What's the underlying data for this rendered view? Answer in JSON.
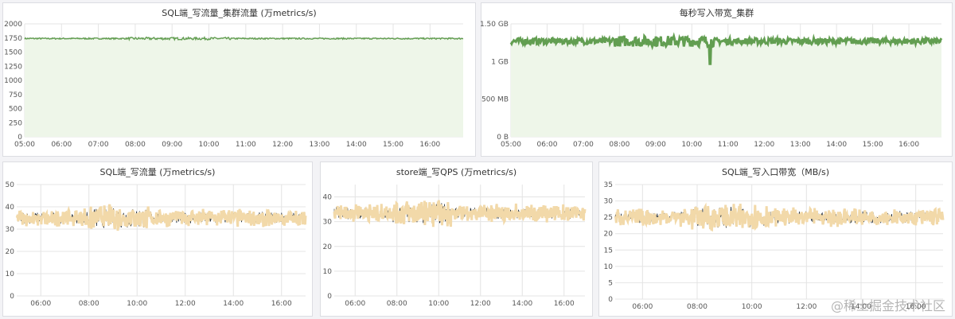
{
  "colors": {
    "green": "#629e51",
    "green_fill": "#eef6e9",
    "wheat": "#f2d9a9",
    "dark": "#1f2a38",
    "grid": "#e4e4e4"
  },
  "chart_data": [
    {
      "id": "p1",
      "type": "line",
      "title": "SQL端_写流量_集群流量 (万metrics/s)",
      "x_ticks": [
        "05:00",
        "06:00",
        "07:00",
        "08:00",
        "09:00",
        "10:00",
        "11:00",
        "12:00",
        "13:00",
        "14:00",
        "15:00",
        "16:00"
      ],
      "x_range": [
        5.0,
        16.9
      ],
      "y_ticks": [
        "0",
        "250",
        "500",
        "750",
        "1000",
        "1250",
        "1500",
        "1750",
        "2000"
      ],
      "y_range": [
        0,
        2000
      ],
      "series": [
        {
          "baseline": 1740,
          "noise": 12,
          "fill": true
        }
      ]
    },
    {
      "id": "p2",
      "type": "area",
      "title": "每秒写入带宽_集群",
      "x_ticks": [
        "05:00",
        "06:00",
        "07:00",
        "08:00",
        "09:00",
        "10:00",
        "11:00",
        "12:00",
        "13:00",
        "14:00",
        "15:00",
        "16:00"
      ],
      "x_range": [
        5.0,
        16.9
      ],
      "y_ticks": [
        "0 B",
        "500 MB",
        "1 GB",
        "1.50 GB"
      ],
      "y_range": [
        0,
        1.5
      ],
      "series": [
        {
          "baseline": 1.27,
          "noise": 0.04,
          "fill": true
        }
      ]
    },
    {
      "id": "p3",
      "type": "line",
      "title": "SQL端_写流量 (万metrics/s)",
      "x_ticks": [
        "06:00",
        "08:00",
        "10:00",
        "12:00",
        "14:00",
        "16:00"
      ],
      "x_range": [
        5.0,
        17.0
      ],
      "y_ticks": [
        "0",
        "10",
        "20",
        "30",
        "40",
        "50"
      ],
      "y_range": [
        0,
        50
      ],
      "series": [
        {
          "baseline": 35,
          "noise": 2.5
        }
      ]
    },
    {
      "id": "p4",
      "type": "line",
      "title": "store端_写QPS (万metrics/s)",
      "x_ticks": [
        "06:00",
        "08:00",
        "10:00",
        "12:00",
        "14:00",
        "16:00"
      ],
      "x_range": [
        5.0,
        17.0
      ],
      "y_ticks": [
        "0",
        "10",
        "20",
        "30",
        "40"
      ],
      "y_range": [
        0,
        45
      ],
      "series": [
        {
          "baseline": 33.5,
          "noise": 2.3
        }
      ]
    },
    {
      "id": "p5",
      "type": "line",
      "title": "SQL端_写入口带宽（MB/s)",
      "x_ticks": [
        "06:00",
        "08:00",
        "10:00",
        "12:00",
        "14:00",
        "16:00"
      ],
      "x_range": [
        5.0,
        17.0
      ],
      "y_ticks": [
        "0",
        "5",
        "10",
        "15",
        "20",
        "25",
        "30",
        "35"
      ],
      "y_range": [
        0,
        35
      ],
      "series": [
        {
          "baseline": 25,
          "noise": 1.8
        }
      ]
    }
  ],
  "watermark": "@稀土掘金技术社区"
}
